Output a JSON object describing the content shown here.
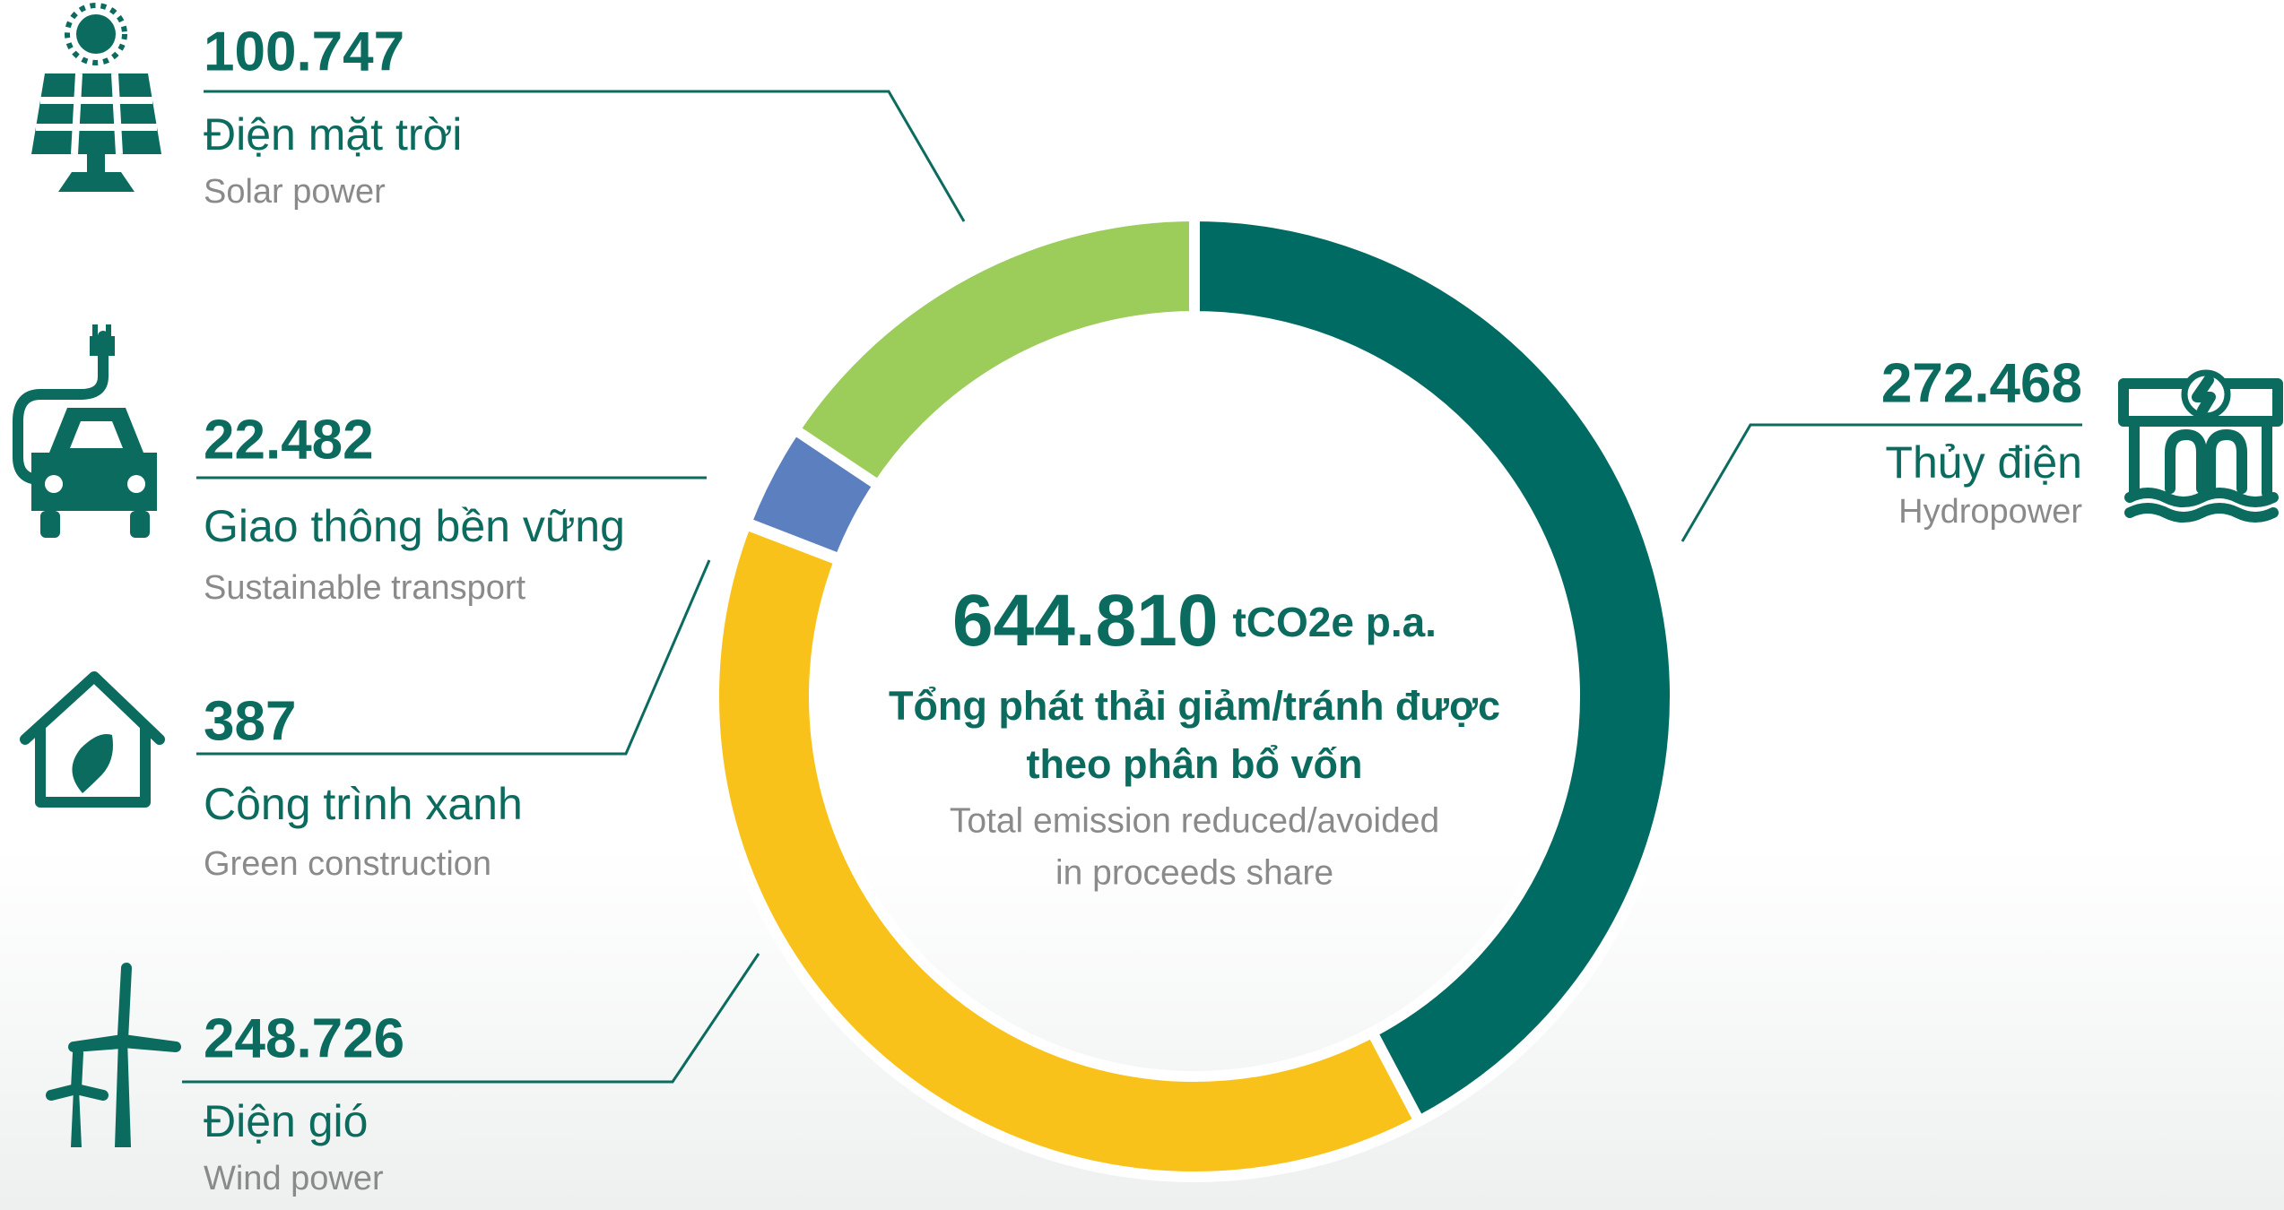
{
  "chart_data": {
    "type": "pie",
    "categories": [
      "Thủy điện",
      "Điện gió",
      "Công trình xanh",
      "Giao thông bền vững",
      "Điện mặt trời"
    ],
    "category_subtitles": [
      "Hydropower",
      "Wind power",
      "Green construction",
      "Sustainable transport",
      "Solar power"
    ],
    "values": [
      272468,
      248726,
      387,
      22482,
      100747
    ],
    "value_labels": [
      "272.468",
      "248.726",
      "387",
      "22.482",
      "100.747"
    ],
    "colors": [
      "#006b63",
      "#f9c21a",
      "#1a9a86",
      "#5b7fbf",
      "#9ccc5a"
    ],
    "total": {
      "value": 644810,
      "label": "644.810"
    },
    "unit": "tCO2e p.a.",
    "center_title": [
      "Tổng phát thải giảm/tránh được",
      "theo phân bổ vốn"
    ],
    "center_subtitle": [
      "Total emission reduced/avoided",
      "in proceeds share"
    ]
  }
}
